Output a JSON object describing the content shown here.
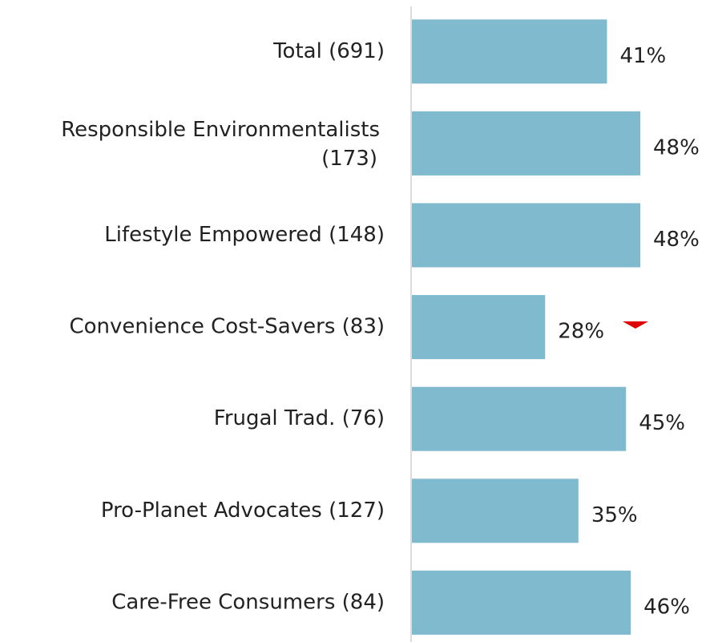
{
  "chart_data": {
    "type": "bar",
    "orientation": "horizontal",
    "categories": [
      "Total (691)",
      "Responsible Environmentalists (173)",
      "Lifestyle Empowered (148)",
      "Convenience Cost-Savers (83)",
      "Frugal Trad. (76)",
      "Pro-Planet Advocates (127)",
      "Care-Free Consumers (84)"
    ],
    "values": [
      41,
      48,
      48,
      28,
      45,
      35,
      46
    ],
    "value_labels": [
      "41%",
      "48%",
      "48%",
      "28%",
      "45%",
      "35%",
      "46%"
    ],
    "color": "#7fbacf"
  }
}
